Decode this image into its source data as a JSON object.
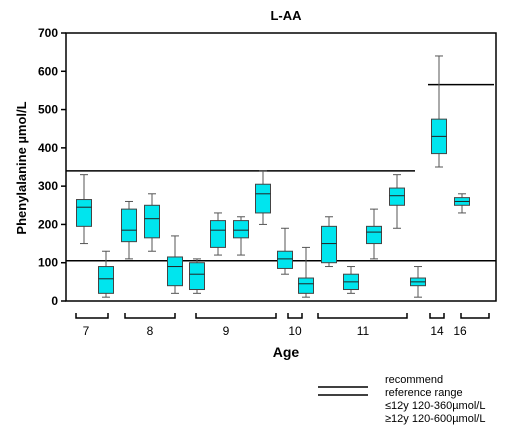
{
  "chart_data": {
    "type": "box",
    "title": "L-AA",
    "xlabel": "Age",
    "ylabel": "Phenylalanine µmol/L",
    "ylim": [
      0,
      700
    ],
    "yticks": [
      0,
      100,
      200,
      300,
      400,
      500,
      600,
      700
    ],
    "groups": [
      {
        "label": "7",
        "boxes": [
          {
            "min": 150,
            "q1": 195,
            "median": 245,
            "q3": 265,
            "max": 330
          },
          {
            "min": 10,
            "q1": 20,
            "median": 58,
            "q3": 90,
            "max": 130
          }
        ]
      },
      {
        "label": "8",
        "boxes": [
          {
            "min": 110,
            "q1": 155,
            "median": 185,
            "q3": 240,
            "max": 260
          },
          {
            "min": 130,
            "q1": 165,
            "median": 215,
            "q3": 250,
            "max": 280
          },
          {
            "min": 20,
            "q1": 40,
            "median": 90,
            "q3": 115,
            "max": 170
          }
        ]
      },
      {
        "label": "9",
        "boxes": [
          {
            "min": 20,
            "q1": 30,
            "median": 70,
            "q3": 100,
            "max": 110
          },
          {
            "min": 120,
            "q1": 140,
            "median": 185,
            "q3": 210,
            "max": 230
          },
          {
            "min": 120,
            "q1": 165,
            "median": 185,
            "q3": 210,
            "max": 220
          },
          {
            "min": 200,
            "q1": 230,
            "median": 280,
            "q3": 305,
            "max": 340
          }
        ]
      },
      {
        "label": "10",
        "boxes": [
          {
            "min": 70,
            "q1": 85,
            "median": 110,
            "q3": 130,
            "max": 190
          },
          {
            "min": 10,
            "q1": 20,
            "median": 45,
            "q3": 60,
            "max": 140
          }
        ]
      },
      {
        "label": "11",
        "boxes": [
          {
            "min": 90,
            "q1": 100,
            "median": 150,
            "q3": 195,
            "max": 220
          },
          {
            "min": 20,
            "q1": 30,
            "median": 50,
            "q3": 70,
            "max": 90
          },
          {
            "min": 110,
            "q1": 150,
            "median": 180,
            "q3": 195,
            "max": 240
          },
          {
            "min": 190,
            "q1": 250,
            "median": 275,
            "q3": 295,
            "max": 330
          }
        ]
      },
      {
        "label": "14",
        "boxes": [
          {
            "min": 10,
            "q1": 40,
            "median": 50,
            "q3": 60,
            "max": 90
          },
          {
            "min": 350,
            "q1": 385,
            "median": 430,
            "q3": 475,
            "max": 640
          }
        ]
      },
      {
        "label": "16",
        "boxes": [
          {
            "min": 230,
            "q1": 250,
            "median": 260,
            "q3": 270,
            "max": 280
          }
        ]
      }
    ],
    "reference_lines": [
      {
        "value": 340,
        "span": "left"
      },
      {
        "value": 105,
        "span": "full"
      },
      {
        "value": 565,
        "span": "right"
      }
    ],
    "box_color": "#00e5ee",
    "legend": {
      "line1": "recommend",
      "line2": "reference range",
      "line3": "≤12y 120-360µmol/L",
      "line4": "≥12y 120-600µmol/L"
    }
  }
}
